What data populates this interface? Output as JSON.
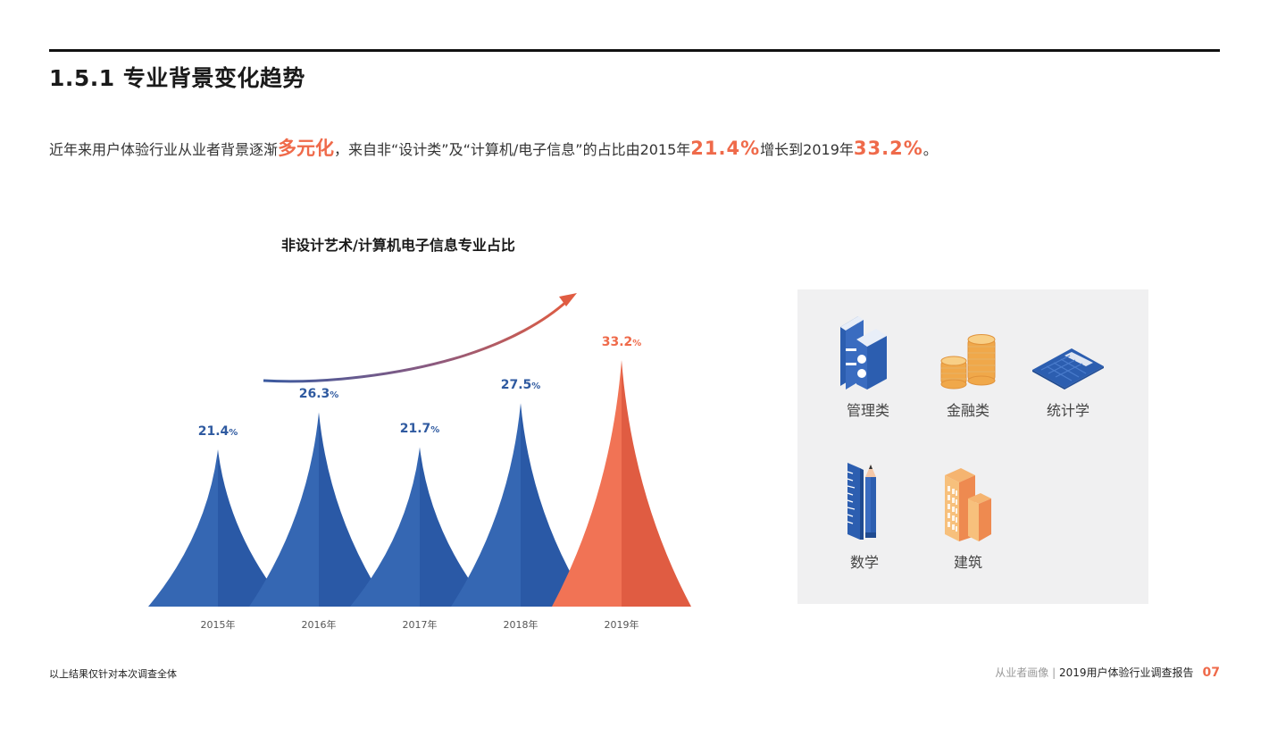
{
  "header": {
    "section_title": "1.5.1 专业背景变化趋势"
  },
  "summary": {
    "part1": "近年来用户体验行业从业者背景逐渐",
    "highlight1": "多元化",
    "part2": "，来自非“设计类”及“计算机/电子信息”的占比由2015年",
    "highlight2": "21.4%",
    "part3": "增长到2019年",
    "highlight3": "33.2%",
    "part4": "。"
  },
  "colors": {
    "accent": "#ef6a4a",
    "blue_light": "#3567b3",
    "blue_dark": "#2a59a6",
    "orange_light": "#f17355",
    "orange_dark": "#e05c42",
    "blue_label": "#2f5aa0",
    "panel_bg": "#f0f0f1"
  },
  "chart_data": {
    "type": "area",
    "title": "非设计艺术/计算机电子信息专业占比",
    "xlabel": "",
    "ylabel": "",
    "categories": [
      "2015年",
      "2016年",
      "2017年",
      "2018年",
      "2019年"
    ],
    "values": [
      21.4,
      26.3,
      21.7,
      27.5,
      33.2
    ],
    "labels": [
      {
        "num": "21.4",
        "unit": "%"
      },
      {
        "num": "26.3",
        "unit": "%"
      },
      {
        "num": "21.7",
        "unit": "%"
      },
      {
        "num": "27.5",
        "unit": "%"
      },
      {
        "num": "33.2",
        "unit": "%"
      }
    ],
    "highlight_index": 4,
    "annotation": "upward trend arrow (blue to orange gradient)",
    "grid": false,
    "legend": null
  },
  "fields_panel": {
    "items": [
      {
        "label": "管理类",
        "icon": "books-icon"
      },
      {
        "label": "金融类",
        "icon": "coins-icon"
      },
      {
        "label": "统计学",
        "icon": "calculator-icon"
      },
      {
        "label": "数学",
        "icon": "ruler-pencil-icon"
      },
      {
        "label": "建筑",
        "icon": "building-icon"
      }
    ]
  },
  "footer": {
    "note": "以上结果仅针对本次调查全体",
    "section": "从业者画像 | ",
    "report": "2019用户体验行业调查报告",
    "page": "07"
  }
}
